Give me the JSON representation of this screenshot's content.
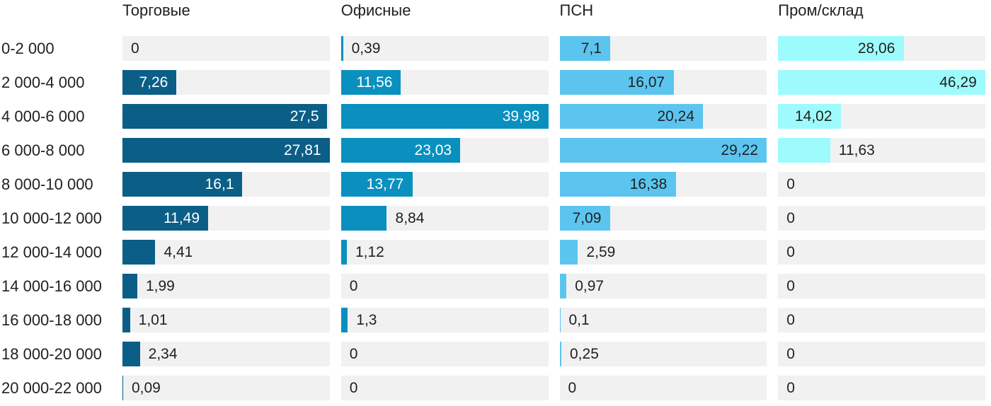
{
  "chart_data": {
    "type": "bar",
    "orientation": "horizontal",
    "title": "",
    "xlabel": "",
    "ylabel": "",
    "grid": false,
    "legend_position": "column-headers-top",
    "scale_note": "each column scaled independently so its max value fills the track",
    "background_color": "#ffffff",
    "track_color": "#f1f1f2",
    "text_color": "#212121",
    "categories": [
      "0-2 000",
      "2 000-4 000",
      "4 000-6 000",
      "6 000-8 000",
      "8 000-10 000",
      "10 000-12 000",
      "12 000-14 000",
      "14 000-16 000",
      "16 000-18 000",
      "18 000-20 000",
      "20 000-22 000"
    ],
    "series": [
      {
        "name": "Торговые",
        "color": "#0b5e86",
        "label_inside_color": "#ffffff",
        "values": [
          0,
          7.26,
          27.5,
          27.81,
          16.1,
          11.49,
          4.41,
          1.99,
          1.01,
          2.34,
          0.09
        ]
      },
      {
        "name": "Офисные",
        "color": "#0a90bf",
        "label_inside_color": "#ffffff",
        "values": [
          0.39,
          11.56,
          39.98,
          23.03,
          13.77,
          8.84,
          1.12,
          0,
          1.3,
          0,
          0
        ]
      },
      {
        "name": "ПСН",
        "color": "#5bc5f0",
        "label_inside_color": "#212121",
        "values": [
          7.1,
          16.07,
          20.24,
          29.22,
          16.38,
          7.09,
          2.59,
          0.97,
          0.1,
          0.25,
          0
        ]
      },
      {
        "name": "Пром/склад",
        "color": "#9efbfd",
        "label_inside_color": "#212121",
        "values": [
          28.06,
          46.29,
          14.02,
          11.63,
          0,
          0,
          0,
          0,
          0,
          0,
          0
        ]
      }
    ]
  }
}
